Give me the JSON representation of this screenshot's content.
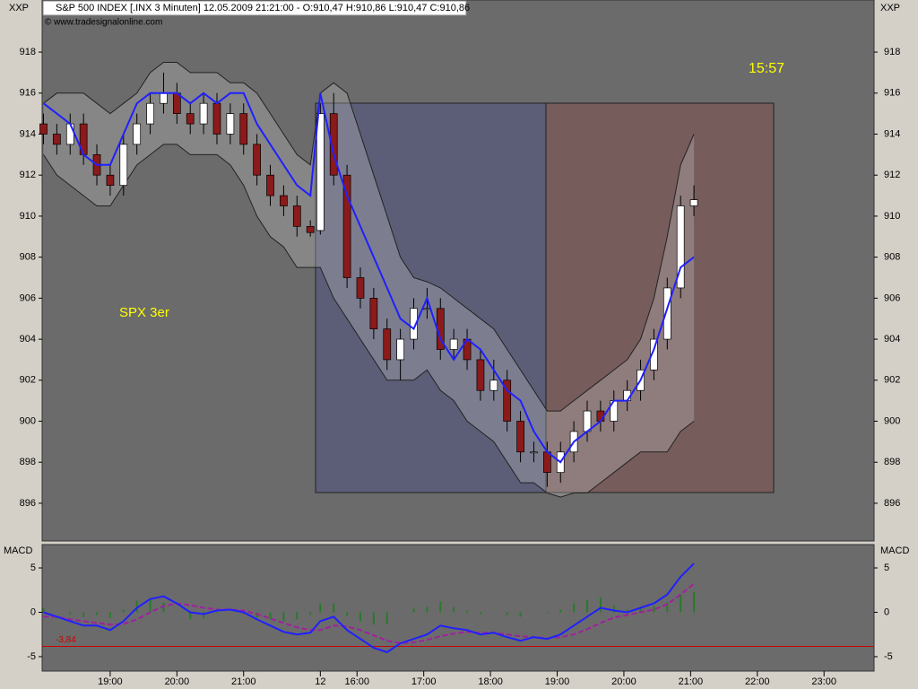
{
  "chart_data": {
    "type": "candlestick",
    "header": "S&P 500 INDEX [.INX  3 Minuten] 12.05.2009 21:21:00 - O:910,47 H:910,86 L:910,47 C:910,86",
    "watermark": "© www.tradesignalonline.com",
    "symbol_label": "XXP",
    "time_label": "15:57",
    "note": "SPX 3er",
    "x": [
      0,
      4,
      8,
      12,
      16,
      20,
      24,
      28,
      32,
      36,
      40,
      44,
      48,
      52,
      56,
      60,
      64,
      68,
      72,
      76,
      80,
      83,
      87,
      91,
      95,
      99,
      103,
      107,
      111,
      115,
      119,
      123,
      127,
      131,
      135,
      139,
      143,
      147,
      151,
      155,
      159,
      163,
      167,
      171,
      175,
      179,
      183,
      187,
      191,
      195
    ],
    "open": [
      914.5,
      914,
      913.5,
      914.5,
      913,
      912,
      911.5,
      913.5,
      914.5,
      915.5,
      916,
      915,
      914.5,
      915.5,
      914,
      915,
      913.5,
      912,
      911,
      910.5,
      909.5,
      909.3,
      915,
      912,
      907,
      906,
      904.5,
      903,
      904,
      905.5,
      905.5,
      903.5,
      904,
      903,
      901.5,
      902,
      900,
      898.5,
      898.5,
      897.5,
      898.5,
      899.5,
      900.5,
      900,
      901,
      901.5,
      902.5,
      904,
      906.5,
      910.5
    ],
    "high": [
      915,
      914.5,
      915,
      915,
      913.5,
      912.5,
      914,
      915,
      916,
      917,
      916.5,
      915.5,
      916,
      916,
      915.5,
      915.5,
      914,
      912.5,
      911.5,
      911,
      909.8,
      915.5,
      916,
      912.5,
      907.5,
      906.5,
      905,
      904.5,
      906,
      906.5,
      906,
      904.5,
      904.5,
      903.5,
      903,
      902.5,
      900.5,
      899,
      899,
      899,
      900,
      901,
      901,
      901.5,
      902,
      903,
      904.5,
      907,
      911,
      911.5
    ],
    "low": [
      913.5,
      913,
      913,
      912.5,
      911.5,
      911,
      911,
      913,
      914,
      915,
      914.5,
      914,
      914,
      913.5,
      913.5,
      913,
      911.5,
      910.5,
      910,
      909,
      909,
      909.1,
      911.5,
      906.5,
      905.5,
      904,
      902.5,
      902,
      903.5,
      905,
      903,
      903,
      902.5,
      901,
      901,
      899.5,
      898,
      898,
      896.8,
      897,
      898,
      899,
      899.5,
      899.5,
      900.5,
      901,
      902,
      903.5,
      906,
      910
    ],
    "close": [
      914,
      913.5,
      914.5,
      913,
      912,
      911.5,
      913.5,
      914.5,
      915.5,
      916,
      915,
      914.5,
      915.5,
      914,
      915,
      913.5,
      912,
      911,
      910.5,
      909.5,
      909.2,
      915,
      912,
      907,
      906,
      904.5,
      903,
      904,
      905.5,
      905.5,
      903.5,
      904,
      903,
      901.5,
      902,
      900,
      898.5,
      898.5,
      897.5,
      898.5,
      899.5,
      900.5,
      900,
      901,
      901.5,
      902.5,
      904,
      906.5,
      910.5,
      910.8
    ],
    "upper_band": [
      915.5,
      916,
      916,
      916,
      915.5,
      915,
      915.5,
      916,
      917,
      917.5,
      917.5,
      917,
      917,
      917,
      916.5,
      916.5,
      916,
      915,
      914,
      913,
      912.5,
      916,
      916.5,
      916,
      914,
      912,
      910,
      908,
      907,
      906.8,
      906.5,
      906,
      905.5,
      905,
      904.5,
      903.5,
      902.5,
      901.5,
      900.5,
      900.5,
      901,
      901.5,
      902,
      902.5,
      903,
      904,
      906,
      909,
      912.5,
      914
    ],
    "lower_band": [
      913,
      912,
      911.5,
      911,
      910.5,
      910.5,
      911.5,
      912.5,
      913,
      913.5,
      913.5,
      913,
      913,
      913,
      912.5,
      911.5,
      910,
      909,
      908.5,
      907.5,
      907.5,
      907.5,
      906,
      905,
      904,
      903,
      902,
      902,
      902,
      902.5,
      901.5,
      901,
      900,
      899.5,
      899,
      898,
      897,
      897,
      896.5,
      896.3,
      896.5,
      896.5,
      897,
      897.5,
      898,
      898.5,
      898.5,
      898.5,
      899.5,
      900
    ],
    "average": [
      915.5,
      915,
      914.5,
      913,
      912.5,
      912.5,
      914,
      915.5,
      916,
      916,
      916,
      915.5,
      916,
      915.5,
      916,
      916,
      914.5,
      913.5,
      912.5,
      911.5,
      911,
      916,
      913,
      911,
      909.5,
      908,
      906.5,
      905,
      904.5,
      906,
      904,
      903,
      904,
      903.5,
      902.5,
      901.5,
      901,
      899.5,
      898.5,
      898,
      899,
      899.5,
      900,
      901,
      901,
      902,
      903.5,
      905.5,
      907.5,
      908
    ],
    "xlim": [
      0,
      249
    ],
    "xticks": [
      {
        "value": 20,
        "label": "19:00"
      },
      {
        "value": 40,
        "label": "20:00"
      },
      {
        "value": 60,
        "label": "21:00"
      },
      {
        "value": 83,
        "label": "12"
      },
      {
        "value": 94,
        "label": "16:00"
      },
      {
        "value": 114,
        "label": "17:00"
      },
      {
        "value": 134,
        "label": "18:00"
      },
      {
        "value": 154,
        "label": "19:00"
      },
      {
        "value": 174,
        "label": "20:00"
      },
      {
        "value": 194,
        "label": "21:00"
      },
      {
        "value": 214,
        "label": "22:00"
      },
      {
        "value": 234,
        "label": "23:00"
      }
    ],
    "ylim": [
      894.16,
      920.54
    ],
    "yticks": [
      896,
      898,
      900,
      902,
      904,
      906,
      908,
      910,
      912,
      914,
      916,
      918
    ],
    "up_color": "#ffffff",
    "down_color": "#8b1a1a",
    "average_color": "#2020ff",
    "band_color": "#222222",
    "macd": {
      "title": "MACD",
      "ylim": [
        -6.62,
        7.63
      ],
      "yticks": [
        -5,
        0,
        5
      ],
      "level": {
        "value": -3.84,
        "label": "-3,84"
      },
      "line": [
        0,
        -0.5,
        -1,
        -1.5,
        -1.5,
        -2,
        -1,
        0.5,
        1.5,
        1.8,
        1,
        0,
        -0.2,
        0.2,
        0.3,
        0,
        -0.8,
        -1.5,
        -2.2,
        -2.5,
        -2.3,
        -1,
        -0.5,
        -2,
        -3,
        -4,
        -4.5,
        -3.5,
        -3,
        -2.5,
        -1.5,
        -1.8,
        -2,
        -2.5,
        -2.3,
        -2.8,
        -3.2,
        -2.8,
        -3,
        -2.5,
        -1.5,
        -0.5,
        0.5,
        0.2,
        0,
        0.5,
        1,
        2,
        4,
        5.5
      ],
      "signal": [
        -0.5,
        -0.5,
        -0.8,
        -1,
        -1.2,
        -1.4,
        -1.3,
        -0.8,
        0,
        0.7,
        1,
        0.8,
        0.5,
        0.3,
        0.3,
        0.2,
        -0.2,
        -0.7,
        -1.2,
        -1.7,
        -2,
        -2,
        -1.5,
        -1.6,
        -2,
        -2.6,
        -3.2,
        -3.5,
        -3.4,
        -3.1,
        -2.7,
        -2.4,
        -2.2,
        -2.3,
        -2.3,
        -2.5,
        -2.7,
        -2.8,
        -2.9,
        -2.8,
        -2.5,
        -1.9,
        -1.2,
        -0.6,
        -0.3,
        0,
        0.3,
        0.9,
        2,
        3.2
      ],
      "histogram": [
        0.5,
        0,
        -0.2,
        -0.5,
        -0.3,
        -0.6,
        0.3,
        1.3,
        1.5,
        1.1,
        0,
        -0.8,
        -0.7,
        -0.1,
        0,
        -0.2,
        -0.6,
        -0.8,
        -1,
        -0.8,
        -0.3,
        1,
        1,
        -0.4,
        -1,
        -1.4,
        -1.3,
        0,
        0.4,
        0.6,
        1.2,
        0.6,
        0.2,
        -0.2,
        0,
        -0.3,
        -0.5,
        0,
        -0.1,
        0.3,
        1,
        1.4,
        1.7,
        0.8,
        0.3,
        0.5,
        0.7,
        1.1,
        2,
        2.3
      ],
      "line_color": "#2020ff",
      "signal_color": "#a020a0",
      "histogram_color": "#2a7a2a",
      "level_color": "#cc0000"
    }
  }
}
